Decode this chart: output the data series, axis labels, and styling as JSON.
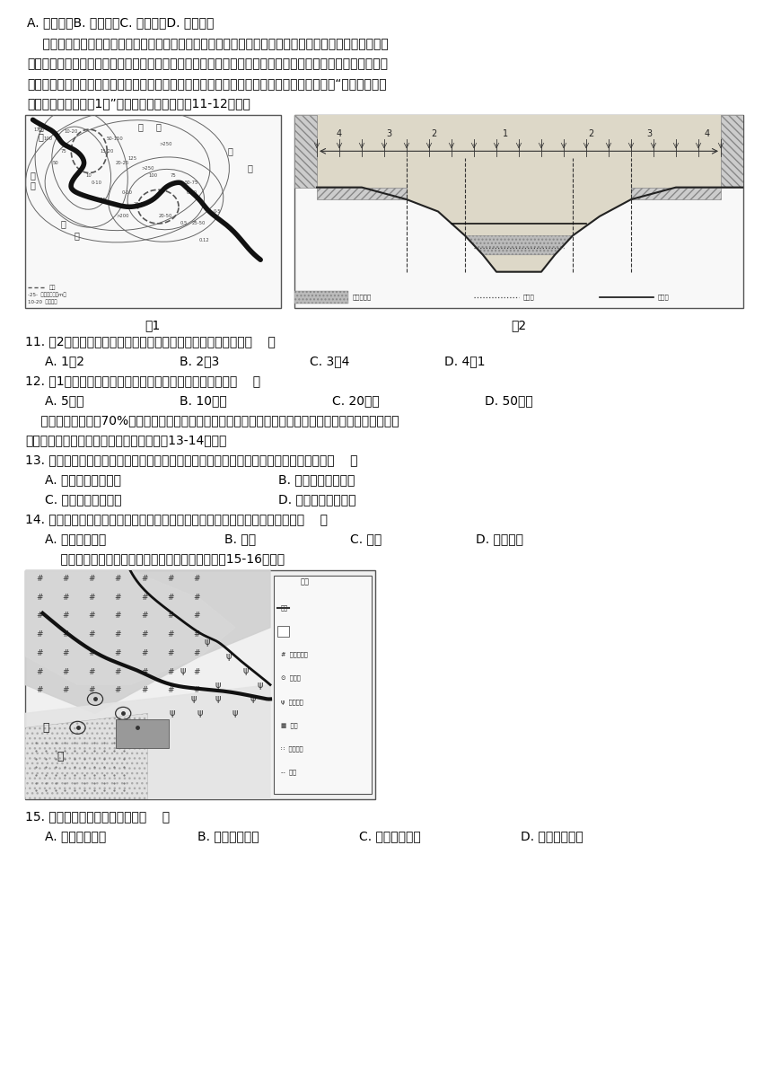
{
  "background_color": "#ffffff",
  "text_color": "#000000",
  "line1": "A. 河运便利B. 地势平坦C. 远离水源D. 洪涝频繁",
  "para1": "    在河流中下游，凸岑堆积，形成水下堆积体，堆积体的面积不断扩大，在枯水期露出水面，形成河漫滩。",
  "para2": "在发育演变过程中，新的裸露、湿润土地的形成，为树木生长创造了条件。河漫滩上不同树龄树木的分布隐含",
  "para3": "着河道演变的许多信息。科研人员调查了美国小密苏里河河漫滩上树木的分布情况，并绘制出“树龄等値线分",
  "para4": "布与河道演变图（图1）”。读下面两幅图，完成11-12小题。",
  "fig1_label": "图1",
  "fig2_label": "图2",
  "q11": "11. 图2示意河谷横剖面结构，表示河漫滩和河流阶地的分别是（    ）",
  "q11a": "A. 1、2",
  "q11b": "B. 2、3",
  "q11c": "C. 3、4",
  "q11d": "D. 4、1",
  "q12": "12. 图1中有两个废弃的曲流，推断上游曲流废弃的时间是（    ）",
  "q12a": "A. 5年前",
  "q12b": "B. 10年前",
  "q12c": "C. 20年前",
  "q12d": "D. 50年前",
  "para5": "    黄土高原拥有世界70%的黄土分布，这里处在半湿润与半干旱地区交界处，降水集中，植被破坏严重，黄",
  "para6": "土高原地表沟壑纵横，支离破碎。据此完成13-14小题。",
  "q13": "13. 形成黄土高原黄土层和黄土高原地表沟壑纵横、支离破碎地貌的主要地质作用分别是（    ）",
  "q13a": "A. 流水堆积风力侵蚀",
  "q13b": "B. 风力堆积冰川侵蚀",
  "q13c": "C. 风力堆积风力侵蚀",
  "q13d": "D. 风力堆积流水侵蚀",
  "q14": "14. 在黄土高原沟壑纵横、支离破碎的地貌条件下，可能造成下列何种自然灾害（    ）",
  "q14a": "A. 滑坡、泥石流",
  "q14b": "B. 地震",
  "q14c": "C. 台风",
  "q14d": "D. 火山活动",
  "para7": "    下图为我国西北局部地区示意图。读图。完成下面15-16小题。",
  "q15": "15. 形成图中沙丘的主要作用是（    ）",
  "q15a": "A. 流水侵蚀作用",
  "q15b": "B. 风力侵蚀作用",
  "q15c": "C. 风力堆积作用",
  "q15d": "D. 流水沉积作用"
}
